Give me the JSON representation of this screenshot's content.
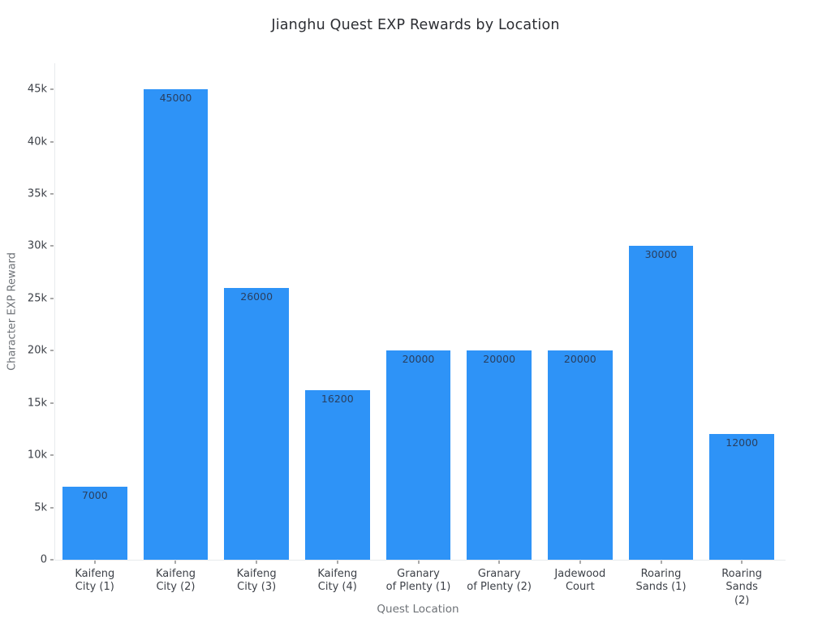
{
  "chart_data": {
    "type": "bar",
    "title": "Jianghu Quest EXP Rewards by Location",
    "xlabel": "Quest Location",
    "ylabel": "Character EXP Reward",
    "categories": [
      "Kaifeng City (1)",
      "Kaifeng City (2)",
      "Kaifeng City (3)",
      "Kaifeng City (4)",
      "Granary of Plenty (1)",
      "Granary of Plenty (2)",
      "Jadewood Court",
      "Roaring Sands (1)",
      "Roaring Sands (2)"
    ],
    "category_tick_lines": [
      [
        "Kaifeng",
        "City (1)"
      ],
      [
        "Kaifeng",
        "City (2)"
      ],
      [
        "Kaifeng",
        "City (3)"
      ],
      [
        "Kaifeng",
        "City (4)"
      ],
      [
        "Granary",
        "of Plenty (1)"
      ],
      [
        "Granary",
        "of Plenty (2)"
      ],
      [
        "Jadewood",
        "Court"
      ],
      [
        "Roaring",
        "Sands (1)"
      ],
      [
        "Roaring",
        "Sands (2)"
      ]
    ],
    "values": [
      7000,
      45000,
      26000,
      16200,
      20000,
      20000,
      20000,
      30000,
      12000
    ],
    "bar_value_labels": [
      "7000",
      "45000",
      "26000",
      "16200",
      "20000",
      "20000",
      "20000",
      "30000",
      "12000"
    ],
    "ylim": [
      0,
      47500
    ],
    "yticks": [
      {
        "value": 0,
        "label": "0"
      },
      {
        "value": 5000,
        "label": "5k"
      },
      {
        "value": 10000,
        "label": "10k"
      },
      {
        "value": 15000,
        "label": "15k"
      },
      {
        "value": 20000,
        "label": "20k"
      },
      {
        "value": 25000,
        "label": "25k"
      },
      {
        "value": 30000,
        "label": "30k"
      },
      {
        "value": 35000,
        "label": "35k"
      },
      {
        "value": 40000,
        "label": "40k"
      },
      {
        "value": 45000,
        "label": "45k"
      }
    ],
    "bar_width_fraction": 0.8,
    "grid": false,
    "legend": "none",
    "colors": {
      "background": "#ffffff",
      "bar": "#2e93f7",
      "bar_value_label": "#2a3f5f",
      "axis_line": "#e8eaed",
      "tick_mark": "#555555",
      "tick_label": "#3d4148",
      "axis_title": "#6e7277",
      "title": "#2c2e33"
    }
  }
}
